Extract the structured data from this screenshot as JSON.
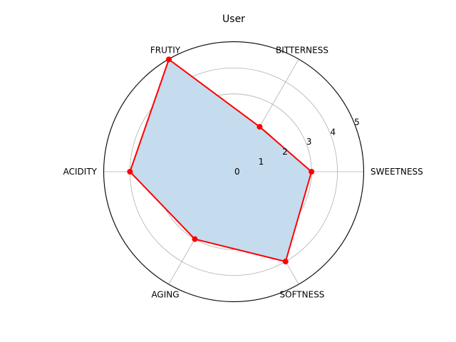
{
  "chart_data": {
    "type": "radar",
    "title": "User",
    "categories": [
      "SWEETNESS",
      "BITTERNESS",
      "FRUTIY",
      "ACIDITY",
      "AGING",
      "SOFTNESS"
    ],
    "series": [
      {
        "values": [
          3,
          2,
          5,
          4,
          3,
          4
        ],
        "line_color": "#ff0000",
        "fill_color": "#c5dbee"
      }
    ],
    "rlim": [
      0,
      5
    ],
    "rticks": [
      "0",
      "1",
      "2",
      "3",
      "4",
      "5"
    ],
    "grid": true
  }
}
